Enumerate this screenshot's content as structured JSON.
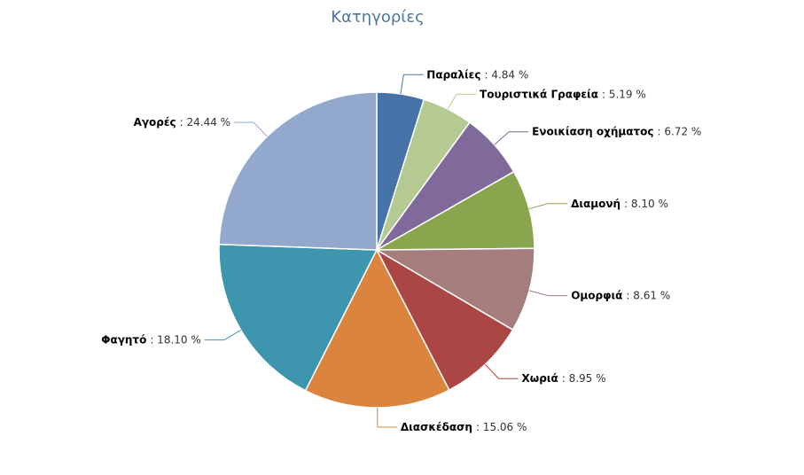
{
  "chart_data": {
    "type": "pie",
    "title": "Κατηγορίες",
    "categories": [
      "Παραλίες",
      "Τουριστικά Γραφεία",
      "Ενοικίαση οχήματος",
      "Διαμονή",
      "Ομορφιά",
      "Χωριά",
      "Διασκέδαση",
      "Φαγητό",
      "Αγορές"
    ],
    "values": [
      4.84,
      5.19,
      6.72,
      8.1,
      8.61,
      8.95,
      15.06,
      18.1,
      24.44
    ],
    "value_labels": [
      ": 4.84 %",
      ": 5.19 %",
      ": 6.72 %",
      ": 8.10 %",
      ": 8.61 %",
      ": 8.95 %",
      ": 15.06 %",
      ": 18.10 %",
      ": 24.44 %"
    ],
    "colors": [
      "#4572a7",
      "#b5ca92",
      "#80699b",
      "#89a54e",
      "#a47d7c",
      "#aa4643",
      "#db843d",
      "#3d96ae",
      "#92a8cd"
    ]
  }
}
